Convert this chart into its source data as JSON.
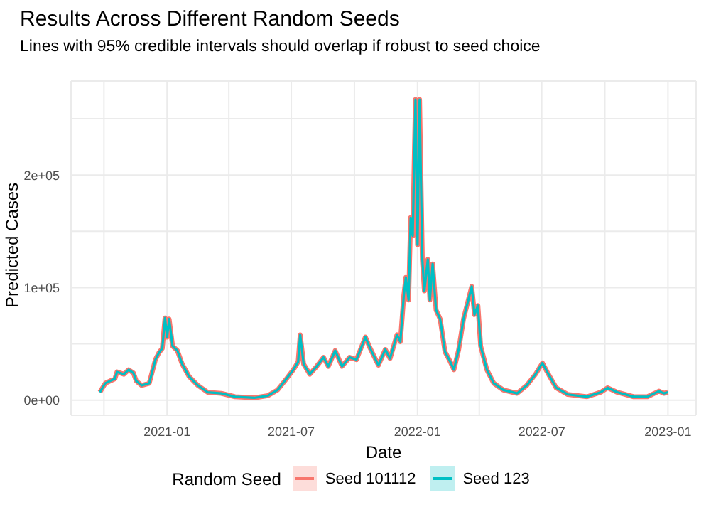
{
  "chart_data": {
    "type": "line",
    "title": "Results Across Different Random Seeds",
    "subtitle": "Lines with 95% credible intervals should overlap if robust to seed choice",
    "xlabel": "Date",
    "ylabel": "Predicted Cases",
    "legend_title": "Random Seed",
    "legend": "bottom",
    "grid": true,
    "marker": "none",
    "line_style": "solid",
    "xlim": [
      "2020-08-14",
      "2023-02-11"
    ],
    "xticks": [
      {
        "value": "2020-10-01",
        "label": null
      },
      {
        "value": "2021-01-01",
        "label": "2021-01"
      },
      {
        "value": "2021-04-01",
        "label": null
      },
      {
        "value": "2021-07-01",
        "label": "2021-07"
      },
      {
        "value": "2021-10-01",
        "label": null
      },
      {
        "value": "2022-01-01",
        "label": "2022-01"
      },
      {
        "value": "2022-04-01",
        "label": null
      },
      {
        "value": "2022-07-01",
        "label": "2022-07"
      },
      {
        "value": "2022-10-01",
        "label": null
      },
      {
        "value": "2023-01-01",
        "label": "2023-01"
      }
    ],
    "ylim": [
      -13500,
      283500
    ],
    "yticks": [
      {
        "value": 0,
        "label": "0e+00"
      },
      {
        "value": 50000,
        "label": null
      },
      {
        "value": 100000,
        "label": "1e+05"
      },
      {
        "value": 150000,
        "label": null
      },
      {
        "value": 200000,
        "label": "2e+05"
      },
      {
        "value": 250000,
        "label": null
      }
    ],
    "x": [
      "2020-09-25",
      "2020-10-03",
      "2020-10-17",
      "2020-10-20",
      "2020-10-30",
      "2020-11-06",
      "2020-11-13",
      "2020-11-17",
      "2020-11-25",
      "2020-12-06",
      "2020-12-15",
      "2020-12-20",
      "2020-12-25",
      "2020-12-29",
      "2021-01-01",
      "2021-01-04",
      "2021-01-09",
      "2021-01-16",
      "2021-01-23",
      "2021-02-02",
      "2021-02-15",
      "2021-03-01",
      "2021-03-21",
      "2021-04-10",
      "2021-05-08",
      "2021-05-28",
      "2021-06-11",
      "2021-06-24",
      "2021-07-04",
      "2021-07-11",
      "2021-07-14",
      "2021-07-19",
      "2021-07-28",
      "2021-08-07",
      "2021-08-17",
      "2021-08-24",
      "2021-09-03",
      "2021-09-13",
      "2021-09-24",
      "2021-10-04",
      "2021-10-17",
      "2021-10-24",
      "2021-11-05",
      "2021-11-15",
      "2021-11-22",
      "2021-12-02",
      "2021-12-07",
      "2021-12-12",
      "2021-12-15",
      "2021-12-19",
      "2021-12-22",
      "2021-12-25",
      "2021-12-29",
      "2022-01-01",
      "2022-01-04",
      "2022-01-08",
      "2022-01-11",
      "2022-01-16",
      "2022-01-19",
      "2022-01-23",
      "2022-01-28",
      "2022-02-03",
      "2022-02-10",
      "2022-02-17",
      "2022-02-23",
      "2022-03-02",
      "2022-03-09",
      "2022-03-16",
      "2022-03-21",
      "2022-03-25",
      "2022-03-30",
      "2022-04-03",
      "2022-04-12",
      "2022-04-22",
      "2022-05-06",
      "2022-05-26",
      "2022-06-09",
      "2022-06-22",
      "2022-07-02",
      "2022-07-09",
      "2022-07-22",
      "2022-08-08",
      "2022-09-05",
      "2022-09-25",
      "2022-10-05",
      "2022-10-19",
      "2022-11-12",
      "2022-12-02",
      "2022-12-19",
      "2022-12-26",
      "2023-01-01"
    ],
    "series": [
      {
        "name": "Seed 101112",
        "color": "#f8766d",
        "values": [
          7000,
          15000,
          19000,
          25000,
          23000,
          27000,
          24000,
          17000,
          13000,
          15000,
          36000,
          42000,
          46000,
          73000,
          56000,
          72000,
          48000,
          44000,
          32000,
          21000,
          13000,
          7000,
          6000,
          3000,
          2000,
          4000,
          9000,
          19000,
          27000,
          34000,
          58000,
          32000,
          23000,
          30000,
          38000,
          30000,
          44000,
          30000,
          38000,
          36000,
          56000,
          46000,
          31000,
          45000,
          37000,
          58000,
          52000,
          93000,
          109000,
          89000,
          162000,
          146000,
          267000,
          138000,
          267000,
          125000,
          97000,
          125000,
          89000,
          121000,
          80000,
          72000,
          43000,
          35000,
          27000,
          45000,
          72000,
          89000,
          101000,
          76000,
          84000,
          48000,
          27000,
          15000,
          9000,
          6000,
          13000,
          23000,
          33000,
          25000,
          11000,
          5000,
          3000,
          7000,
          11000,
          7000,
          3000,
          3000,
          8000,
          6000,
          7000
        ]
      },
      {
        "name": "Seed 123",
        "color": "#00bfc4",
        "values": [
          7000,
          15000,
          19000,
          25000,
          23000,
          27000,
          24000,
          17000,
          13000,
          15000,
          36000,
          42000,
          46000,
          73000,
          56000,
          72000,
          48000,
          44000,
          32000,
          21000,
          13000,
          7000,
          6000,
          3000,
          2000,
          4000,
          9000,
          19000,
          27000,
          34000,
          58000,
          32000,
          23000,
          30000,
          38000,
          30000,
          44000,
          30000,
          38000,
          36000,
          56000,
          46000,
          31000,
          45000,
          37000,
          58000,
          52000,
          93000,
          109000,
          89000,
          162000,
          146000,
          267000,
          138000,
          267000,
          125000,
          97000,
          125000,
          89000,
          121000,
          80000,
          72000,
          43000,
          35000,
          27000,
          45000,
          72000,
          89000,
          101000,
          76000,
          84000,
          48000,
          27000,
          15000,
          9000,
          6000,
          13000,
          23000,
          33000,
          25000,
          11000,
          5000,
          3000,
          7000,
          11000,
          7000,
          3000,
          3000,
          8000,
          6000,
          7000
        ]
      }
    ]
  }
}
